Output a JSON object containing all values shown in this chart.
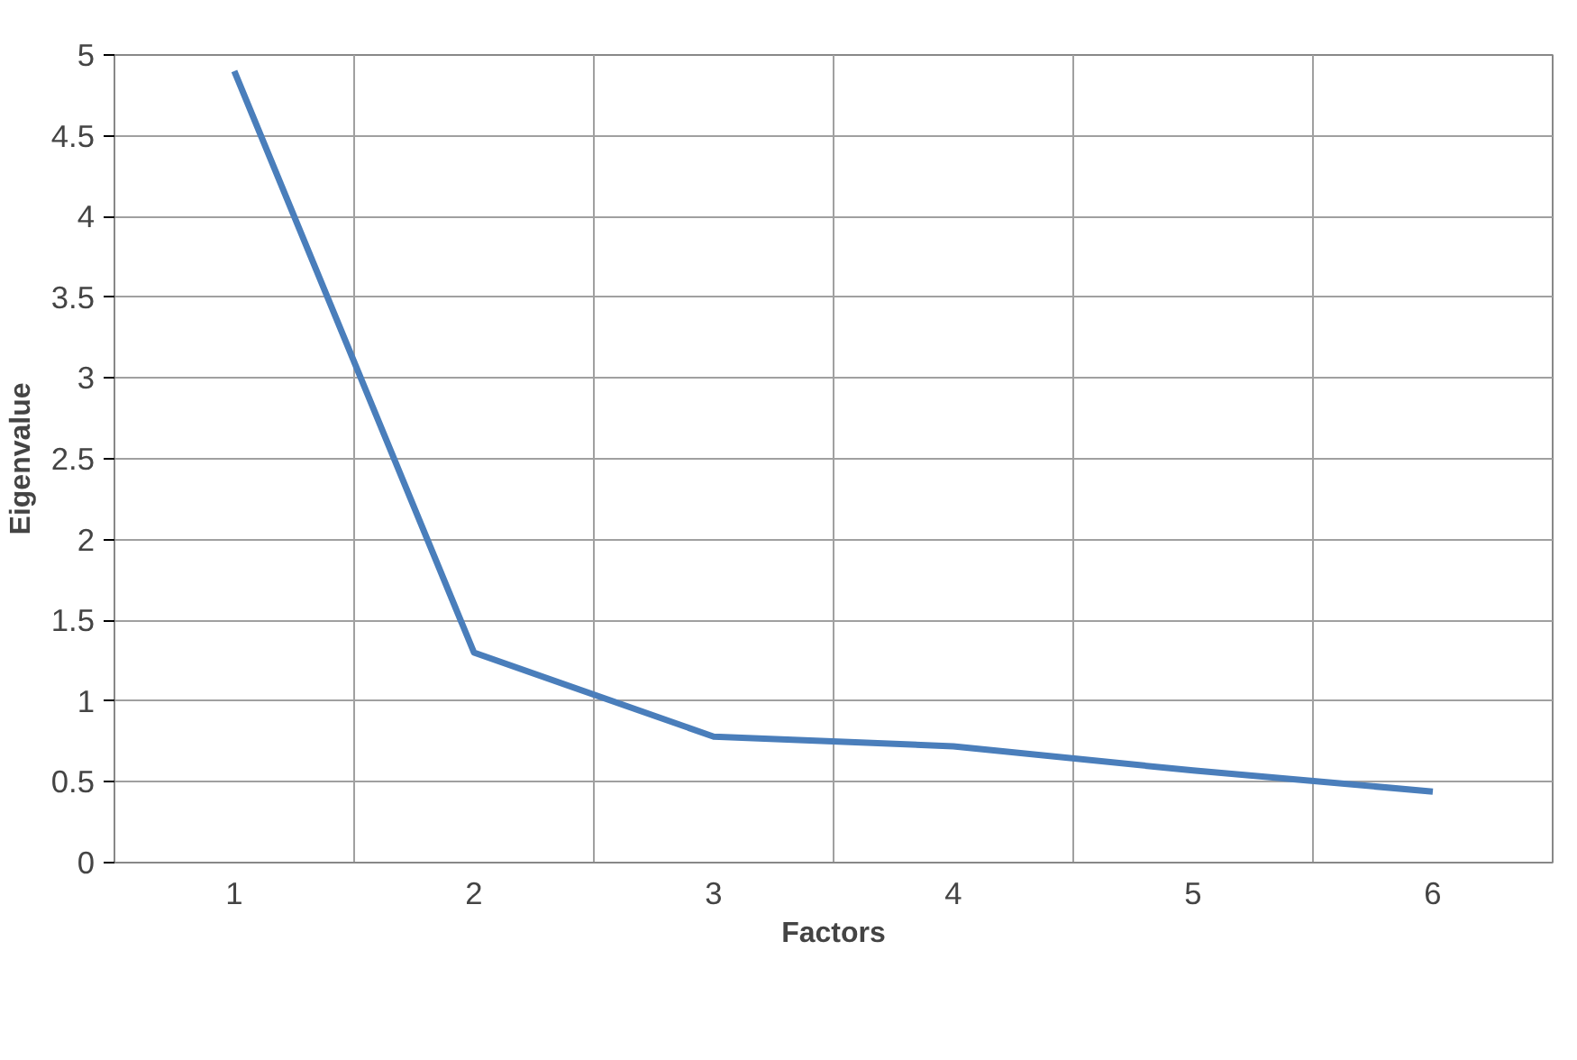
{
  "chart_data": {
    "type": "line",
    "xlabel": "Factors",
    "ylabel": "Eigenvalue",
    "categories": [
      "1",
      "2",
      "3",
      "4",
      "5",
      "6"
    ],
    "series": [
      {
        "color": "#4a7ebb",
        "values": [
          4.9,
          1.3,
          0.78,
          0.72,
          0.57,
          0.44
        ]
      }
    ],
    "ylim": [
      0,
      5
    ],
    "yticks": [
      0,
      0.5,
      1,
      1.5,
      2,
      2.5,
      3,
      3.5,
      4,
      4.5,
      5
    ],
    "grid": true,
    "marker": "none",
    "line_style": "solid"
  }
}
